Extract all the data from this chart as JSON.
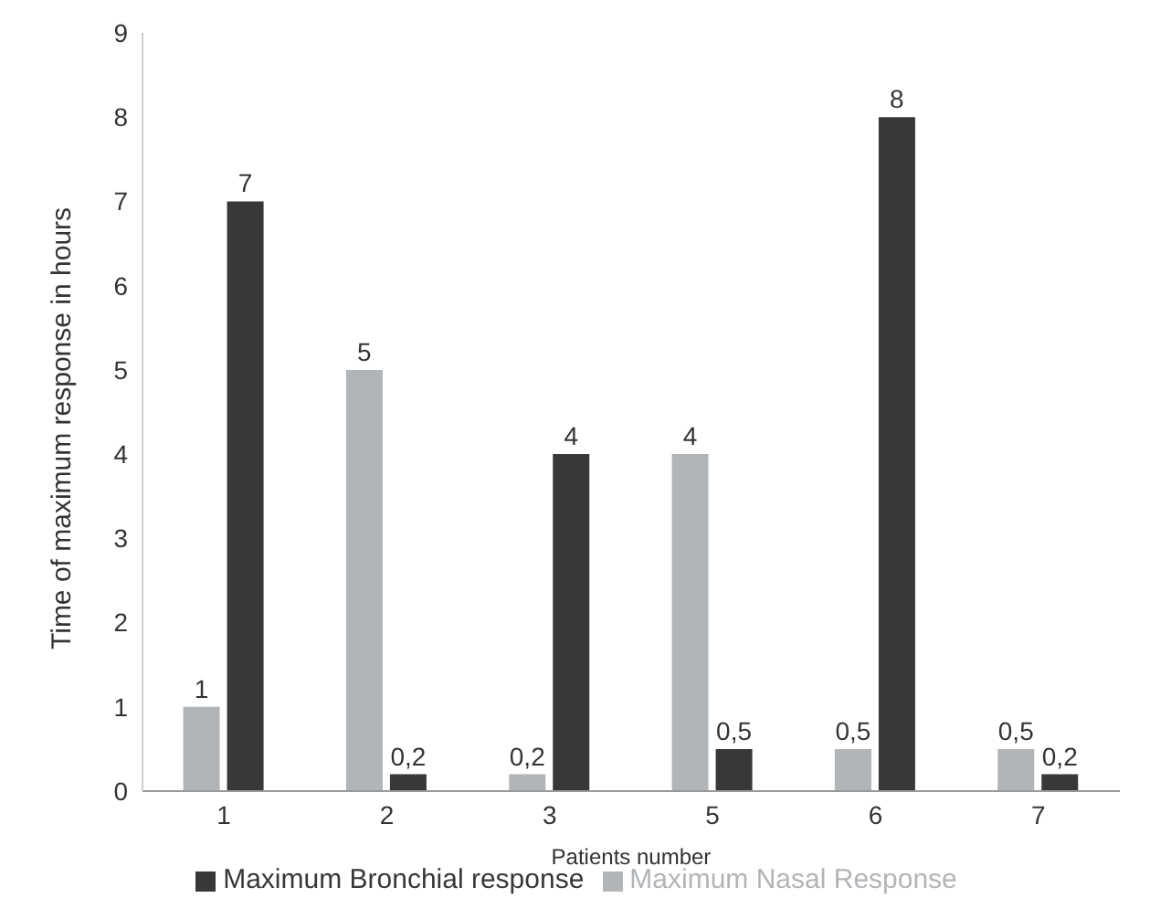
{
  "chart_data": {
    "type": "bar",
    "xlabel": "Patients number",
    "ylabel": "Time of maximum response in hours",
    "categories": [
      "1",
      "2",
      "3",
      "5",
      "6",
      "7"
    ],
    "series": [
      {
        "name": "Maximum Nasal Response",
        "color": "#b2b5b8",
        "values": [
          1,
          5,
          0.2,
          4,
          0.5,
          0.5
        ],
        "value_labels": [
          "1",
          "5",
          "0,2",
          "4",
          "0,5",
          "0,5"
        ]
      },
      {
        "name": "Maximum Bronchial response",
        "color": "#383838",
        "values": [
          7,
          0.2,
          4,
          0.5,
          8,
          0.2
        ],
        "value_labels": [
          "7",
          "0,2",
          "4",
          "0,5",
          "8",
          "0,2"
        ]
      }
    ],
    "ylim": [
      0,
      9
    ],
    "yticks": [
      0,
      1,
      2,
      3,
      4,
      5,
      6,
      7,
      8,
      9
    ],
    "grid": false,
    "legend": "bottom"
  }
}
